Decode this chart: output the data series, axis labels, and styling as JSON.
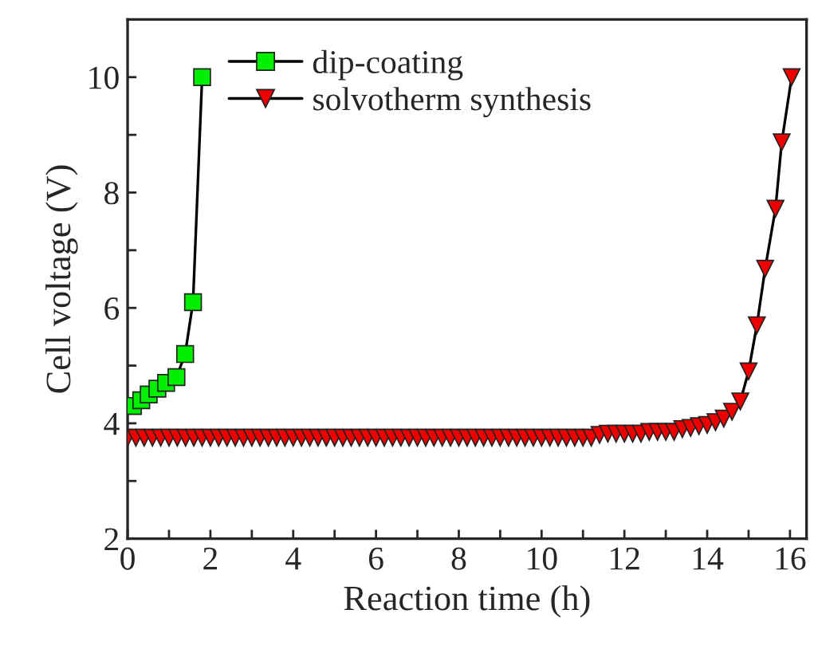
{
  "chart_data": {
    "type": "line",
    "xlabel": "Reaction time (h)",
    "ylabel": "Cell voltage (V)",
    "xlim": [
      0,
      16.4
    ],
    "ylim": [
      2,
      11
    ],
    "xticks": [
      0,
      {
        "value": 1,
        "label": null
      },
      2,
      {
        "value": 3,
        "label": null
      },
      4,
      {
        "value": 5,
        "label": null
      },
      6,
      {
        "value": 7,
        "label": null
      },
      8,
      {
        "value": 9,
        "label": null
      },
      10,
      {
        "value": 11,
        "label": null
      },
      12,
      {
        "value": 13,
        "label": null
      },
      14,
      {
        "value": 15,
        "label": null
      },
      16
    ],
    "yticks": [
      2,
      {
        "value": 3,
        "label": null
      },
      4,
      {
        "value": 5,
        "label": null
      },
      6,
      {
        "value": 7,
        "label": null
      },
      8,
      {
        "value": 9,
        "label": null
      },
      10
    ],
    "grid": false,
    "legend": "top left",
    "series": [
      {
        "name": "dip-coating",
        "color": "#00ee00",
        "marker": "square",
        "x": [
          0.13,
          0.33,
          0.51,
          0.72,
          0.93,
          1.18,
          1.39,
          1.58,
          1.8
        ],
        "values": [
          4.3,
          4.4,
          4.5,
          4.6,
          4.7,
          4.8,
          5.2,
          6.1,
          10.0
        ]
      },
      {
        "name": "solvotherm synthesis",
        "color": "#ee0000",
        "marker": "triangle",
        "x": [
          0,
          0.2,
          0.4,
          0.6,
          0.8,
          1.0,
          1.2,
          1.4,
          1.6,
          1.8,
          2.0,
          2.2,
          2.4,
          2.6,
          2.8,
          3.0,
          3.2,
          3.4,
          3.6,
          3.8,
          4.0,
          4.2,
          4.4,
          4.6,
          4.8,
          5.0,
          5.2,
          5.4,
          5.6,
          5.8,
          6.0,
          6.2,
          6.4,
          6.6,
          6.8,
          7.0,
          7.2,
          7.4,
          7.6,
          7.8,
          8.0,
          8.2,
          8.4,
          8.6,
          8.8,
          9.0,
          9.2,
          9.4,
          9.6,
          9.8,
          10.0,
          10.2,
          10.4,
          10.6,
          10.8,
          11.0,
          11.2,
          11.4,
          11.6,
          11.8,
          12.0,
          12.2,
          12.4,
          12.6,
          12.8,
          13.0,
          13.2,
          13.4,
          13.6,
          13.8,
          14.0,
          14.2,
          14.4,
          14.6,
          14.8,
          15.0,
          15.2,
          15.4,
          15.65,
          15.8,
          16.04
        ],
        "values": [
          3.75,
          3.75,
          3.75,
          3.75,
          3.75,
          3.75,
          3.75,
          3.75,
          3.75,
          3.75,
          3.75,
          3.75,
          3.75,
          3.75,
          3.75,
          3.75,
          3.75,
          3.75,
          3.75,
          3.75,
          3.75,
          3.75,
          3.75,
          3.75,
          3.75,
          3.75,
          3.75,
          3.75,
          3.75,
          3.75,
          3.75,
          3.75,
          3.75,
          3.75,
          3.75,
          3.75,
          3.75,
          3.75,
          3.75,
          3.75,
          3.75,
          3.75,
          3.75,
          3.75,
          3.75,
          3.75,
          3.75,
          3.75,
          3.75,
          3.75,
          3.75,
          3.75,
          3.75,
          3.75,
          3.75,
          3.75,
          3.75,
          3.8,
          3.82,
          3.82,
          3.82,
          3.82,
          3.82,
          3.85,
          3.85,
          3.85,
          3.85,
          3.9,
          3.92,
          3.95,
          3.97,
          4.02,
          4.08,
          4.2,
          4.38,
          4.9,
          5.7,
          6.68,
          7.72,
          8.87,
          10.0
        ]
      }
    ]
  }
}
